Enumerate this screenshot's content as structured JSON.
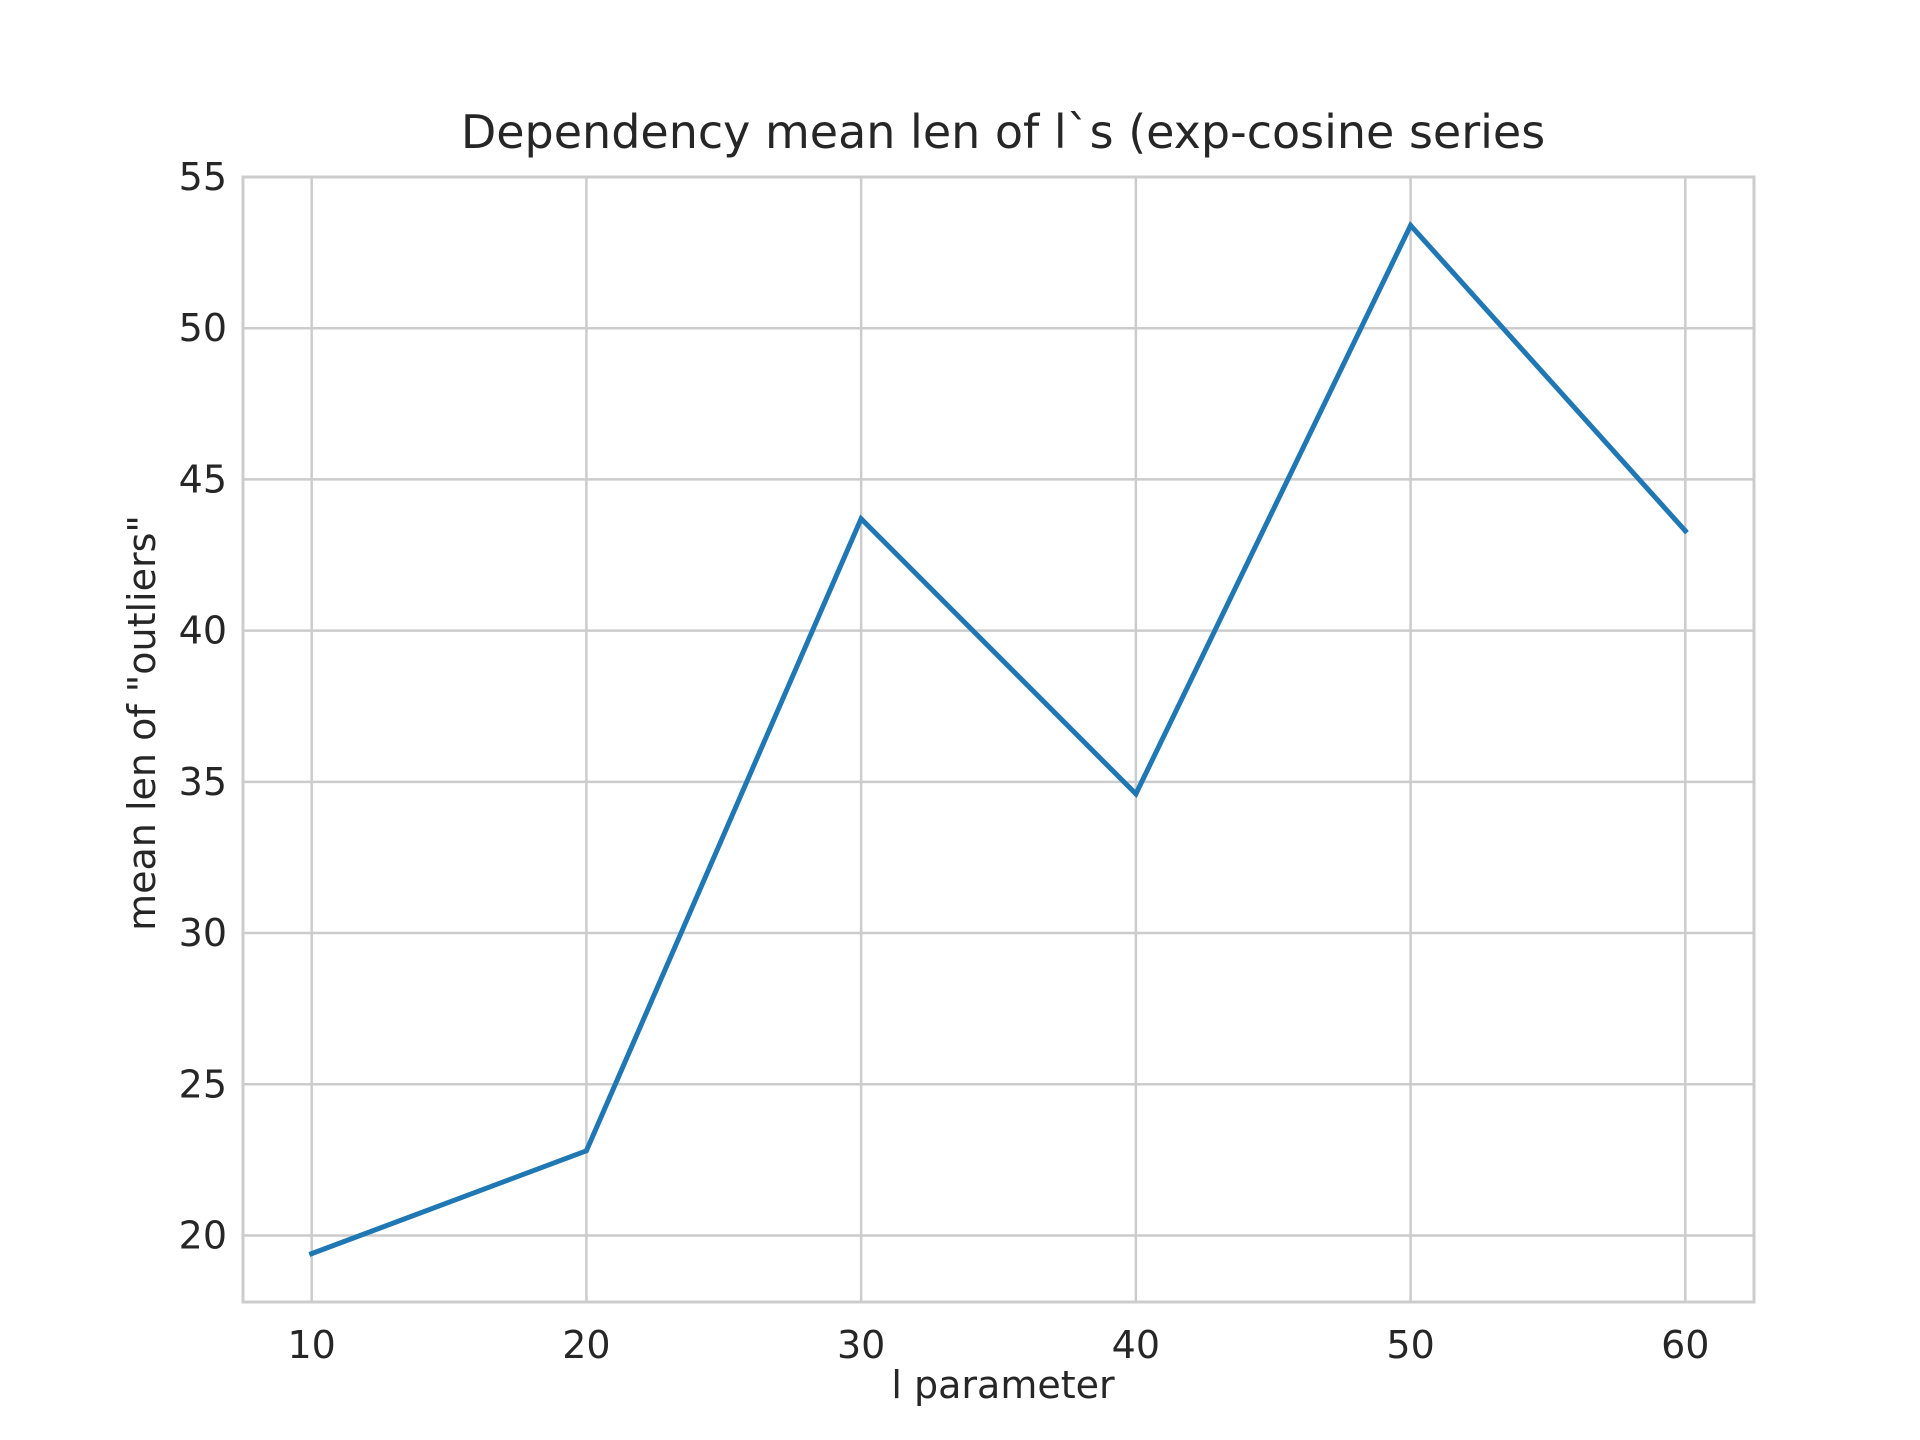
{
  "chart_data": {
    "type": "line",
    "title": "Dependency mean len of l`s (exp-cosine series",
    "xlabel": "l parameter",
    "ylabel": "mean len of \"outliers\"",
    "x": [
      10,
      20,
      30,
      40,
      50,
      60
    ],
    "series": [
      {
        "values": [
          19.4,
          22.8,
          43.7,
          34.6,
          53.4,
          43.3
        ]
      }
    ],
    "xticks": [
      10,
      20,
      30,
      40,
      50,
      60
    ],
    "yticks": [
      20,
      25,
      30,
      35,
      40,
      45,
      50,
      55
    ],
    "xlim": [
      7.5,
      62.5
    ],
    "ylim": [
      17.8,
      55
    ],
    "grid": true,
    "colors": {
      "line": "#1f77b4",
      "grid": "#cccccc",
      "frame": "#cccccc",
      "text": "#262626"
    }
  }
}
